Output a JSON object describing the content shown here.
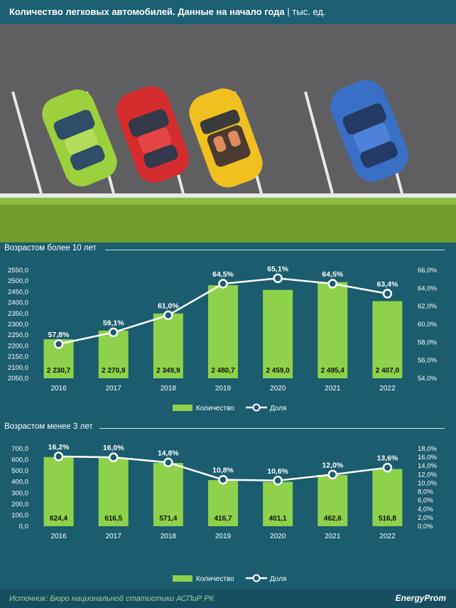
{
  "header": {
    "title": "Количество легковых автомобилей. Данные на начало года",
    "unit": "тыс. ед."
  },
  "colors": {
    "bar": "#8dd24a",
    "line": "#ffffff",
    "background": "#1b5c6e",
    "asphalt": "#5f5f62",
    "grass": "#73a32e"
  },
  "illustration": {
    "icons": [
      "green-car-icon",
      "red-car-icon",
      "yellow-convertible-icon",
      "blue-car-icon"
    ]
  },
  "legend": {
    "count_label": "Количество",
    "share_label": "Доля"
  },
  "chart_data": [
    {
      "type": "bar",
      "title": "Возрастом более 10 лет",
      "categories": [
        "2016",
        "2017",
        "2018",
        "2019",
        "2020",
        "2021",
        "2022"
      ],
      "series": [
        {
          "name": "Количество",
          "values": [
            2230.7,
            2270.9,
            2349.9,
            2480.7,
            2459.0,
            2495.4,
            2407.0
          ],
          "labels": [
            "2 230,7",
            "2 270,9",
            "2 349,9",
            "2 480,7",
            "2 459,0",
            "2 495,4",
            "2 407,0"
          ]
        },
        {
          "name": "Доля",
          "type": "line",
          "axis": "right",
          "values": [
            57.8,
            59.1,
            61.0,
            64.5,
            65.1,
            64.5,
            63.4
          ],
          "labels": [
            "57,8%",
            "59,1%",
            "61,0%",
            "64,5%",
            "65,1%",
            "64,5%",
            "63,4%"
          ]
        }
      ],
      "ylim": [
        2050,
        2550
      ],
      "y_ticks": [
        "2050,0",
        "2100,0",
        "2150,0",
        "2200,0",
        "2250,0",
        "2300,0",
        "2350,0",
        "2400,0",
        "2450,0",
        "2500,0",
        "2550,0"
      ],
      "y2lim": [
        54,
        66
      ],
      "y2_ticks": [
        "54,0%",
        "56,0%",
        "58,0%",
        "60,0%",
        "62,0%",
        "64,0%",
        "66,0%"
      ],
      "legend": "bottom"
    },
    {
      "type": "bar",
      "title": "Возрастом менее 3 лет",
      "categories": [
        "2016",
        "2017",
        "2018",
        "2019",
        "2020",
        "2021",
        "2022"
      ],
      "series": [
        {
          "name": "Количество",
          "values": [
            624.4,
            616.5,
            571.4,
            416.7,
            401.1,
            462.6,
            516.8
          ],
          "labels": [
            "624,4",
            "616,5",
            "571,4",
            "416,7",
            "401,1",
            "462,6",
            "516,8"
          ]
        },
        {
          "name": "Доля",
          "type": "line",
          "axis": "right",
          "values": [
            16.2,
            16.0,
            14.8,
            10.8,
            10.6,
            12.0,
            13.6
          ],
          "labels": [
            "16,2%",
            "16,0%",
            "14,8%",
            "10,8%",
            "10,6%",
            "12,0%",
            "13,6%"
          ]
        }
      ],
      "ylim": [
        0,
        700
      ],
      "y_ticks": [
        "0,0",
        "100,0",
        "200,0",
        "300,0",
        "400,0",
        "500,0",
        "600,0",
        "700,0"
      ],
      "y2lim": [
        0,
        18
      ],
      "y2_ticks": [
        "0,0%",
        "2,0%",
        "4,0%",
        "6,0%",
        "8,0%",
        "10,0%",
        "12,0%",
        "14,0%",
        "16,0%",
        "18,0%"
      ],
      "legend": "bottom"
    }
  ],
  "footer": {
    "source": "Источник: Бюро национальной статистики АСПиР РК",
    "brand": "EnergyProm"
  }
}
